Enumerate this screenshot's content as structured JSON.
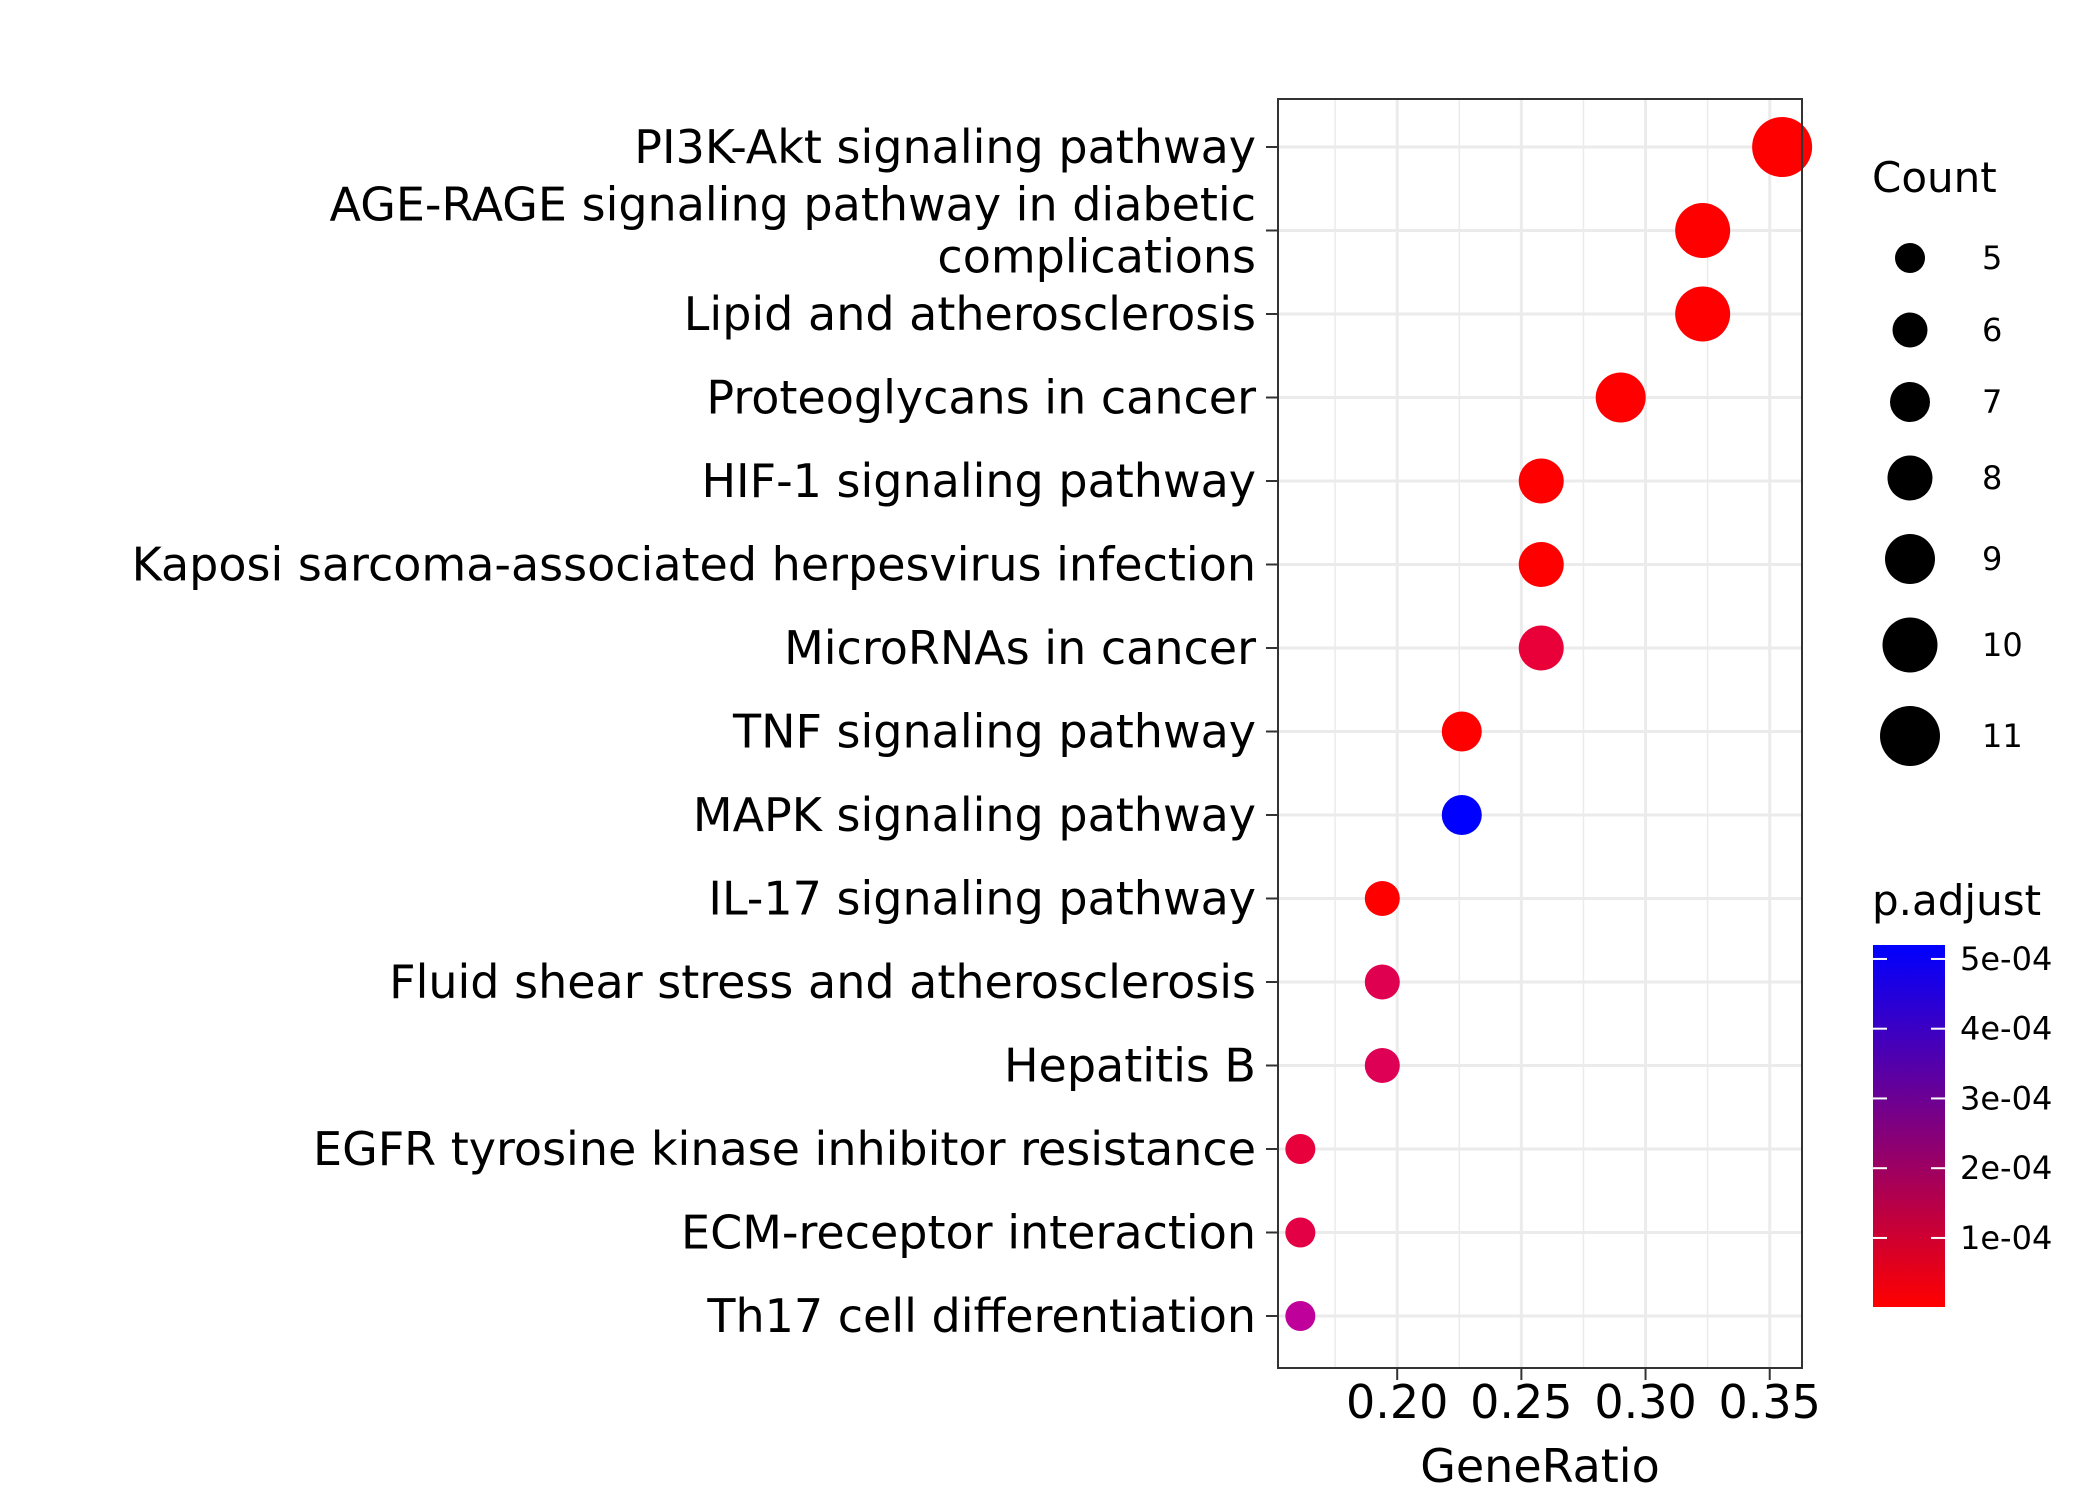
{
  "chart_data": {
    "type": "scatter",
    "title": "",
    "xlabel": "GeneRatio",
    "ylabel": "",
    "xlim": [
      0.152,
      0.363
    ],
    "xticks": [
      0.2,
      0.25,
      0.3,
      0.35
    ],
    "xtick_labels": [
      "0.20",
      "0.25",
      "0.30",
      "0.35"
    ],
    "grid": true,
    "legend_position": "right",
    "points": [
      {
        "term": [
          "PI3K-Akt signaling pathway"
        ],
        "gene_ratio": 0.355,
        "count": 11,
        "p_adjust": 2e-06,
        "color": "#ff0000"
      },
      {
        "term": [
          "AGE-RAGE signaling pathway in diabetic",
          "complications"
        ],
        "gene_ratio": 0.323,
        "count": 10,
        "p_adjust": 1e-06,
        "color": "#ff0000"
      },
      {
        "term": [
          "Lipid and atherosclerosis"
        ],
        "gene_ratio": 0.323,
        "count": 10,
        "p_adjust": 5e-06,
        "color": "#ff0000"
      },
      {
        "term": [
          "Proteoglycans in cancer"
        ],
        "gene_ratio": 0.29,
        "count": 9,
        "p_adjust": 5e-06,
        "color": "#ff0000"
      },
      {
        "term": [
          "HIF-1 signaling pathway"
        ],
        "gene_ratio": 0.258,
        "count": 8,
        "p_adjust": 5e-06,
        "color": "#ff0000"
      },
      {
        "term": [
          "Kaposi sarcoma-associated herpesvirus infection"
        ],
        "gene_ratio": 0.258,
        "count": 8,
        "p_adjust": 1e-05,
        "color": "#ff0000"
      },
      {
        "term": [
          "MicroRNAs in cancer"
        ],
        "gene_ratio": 0.258,
        "count": 8,
        "p_adjust": 0.0001,
        "color": "#ea0039"
      },
      {
        "term": [
          "TNF signaling pathway"
        ],
        "gene_ratio": 0.226,
        "count": 7,
        "p_adjust": 8e-06,
        "color": "#ff0000"
      },
      {
        "term": [
          "MAPK signaling pathway"
        ],
        "gene_ratio": 0.226,
        "count": 7,
        "p_adjust": 0.00052,
        "color": "#0000ff"
      },
      {
        "term": [
          "IL-17 signaling pathway"
        ],
        "gene_ratio": 0.194,
        "count": 6,
        "p_adjust": 1e-05,
        "color": "#ff0000"
      },
      {
        "term": [
          "Fluid shear stress and atherosclerosis"
        ],
        "gene_ratio": 0.194,
        "count": 6,
        "p_adjust": 0.00016,
        "color": "#df0050"
      },
      {
        "term": [
          "Hepatitis B"
        ],
        "gene_ratio": 0.194,
        "count": 6,
        "p_adjust": 0.00017,
        "color": "#dd0055"
      },
      {
        "term": [
          "EGFR tyrosine kinase inhibitor resistance"
        ],
        "gene_ratio": 0.161,
        "count": 5,
        "p_adjust": 0.00011,
        "color": "#e8003d"
      },
      {
        "term": [
          "ECM-receptor interaction"
        ],
        "gene_ratio": 0.161,
        "count": 5,
        "p_adjust": 0.00013,
        "color": "#e40045"
      },
      {
        "term": [
          "Th17 cell differentiation"
        ],
        "gene_ratio": 0.161,
        "count": 5,
        "p_adjust": 0.00031,
        "color": "#c0009a"
      }
    ],
    "size_legend": {
      "title": "Count",
      "values": [
        5,
        6,
        7,
        8,
        9,
        10,
        11
      ],
      "labels": [
        "5",
        "6",
        "7",
        "8",
        "9",
        "10",
        "11"
      ],
      "color": "#000000"
    },
    "color_legend": {
      "title": "p.adjust",
      "range": [
        1e-06,
        0.00052
      ],
      "ticks": [
        0.0005,
        0.0004,
        0.0003,
        0.0002,
        0.0001
      ],
      "labels": [
        "5e-04",
        "4e-04",
        "3e-04",
        "2e-04",
        "1e-04"
      ],
      "low_color": "#ff0000",
      "high_color": "#0000ff"
    }
  }
}
